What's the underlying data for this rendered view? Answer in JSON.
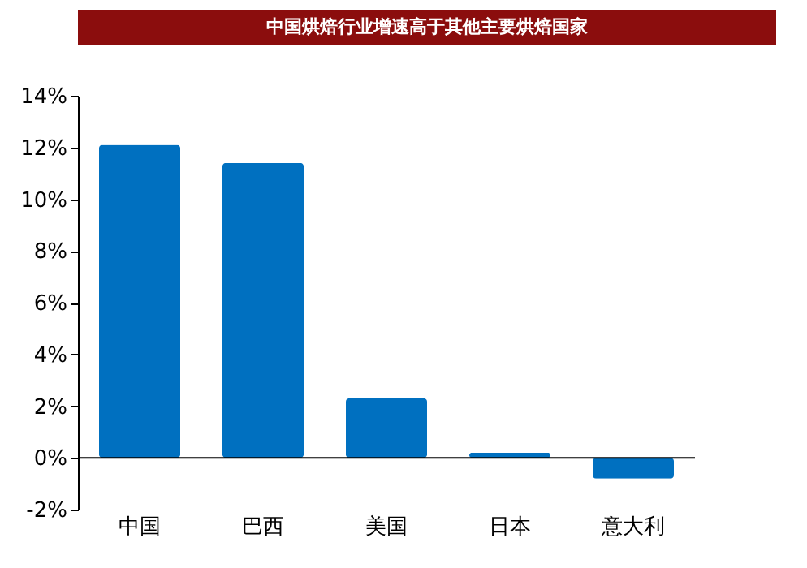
{
  "chart_data": {
    "type": "bar",
    "title": "中国烘焙行业增速高于其他主要烘焙国家",
    "categories": [
      "中国",
      "巴西",
      "美国",
      "日本",
      "意大利"
    ],
    "values": [
      12.1,
      11.4,
      2.3,
      0.2,
      -0.8
    ],
    "color": "#0070c0",
    "ylim": [
      -2,
      14
    ],
    "yticks": [
      {
        "value": -2,
        "label": "-2%"
      },
      {
        "value": 0,
        "label": "0%"
      },
      {
        "value": 2,
        "label": "2%"
      },
      {
        "value": 4,
        "label": "4%"
      },
      {
        "value": 6,
        "label": "6%"
      },
      {
        "value": 8,
        "label": "8%"
      },
      {
        "value": 10,
        "label": "10%"
      },
      {
        "value": 12,
        "label": "12%"
      },
      {
        "value": 14,
        "label": "14%"
      }
    ],
    "legend": false
  }
}
